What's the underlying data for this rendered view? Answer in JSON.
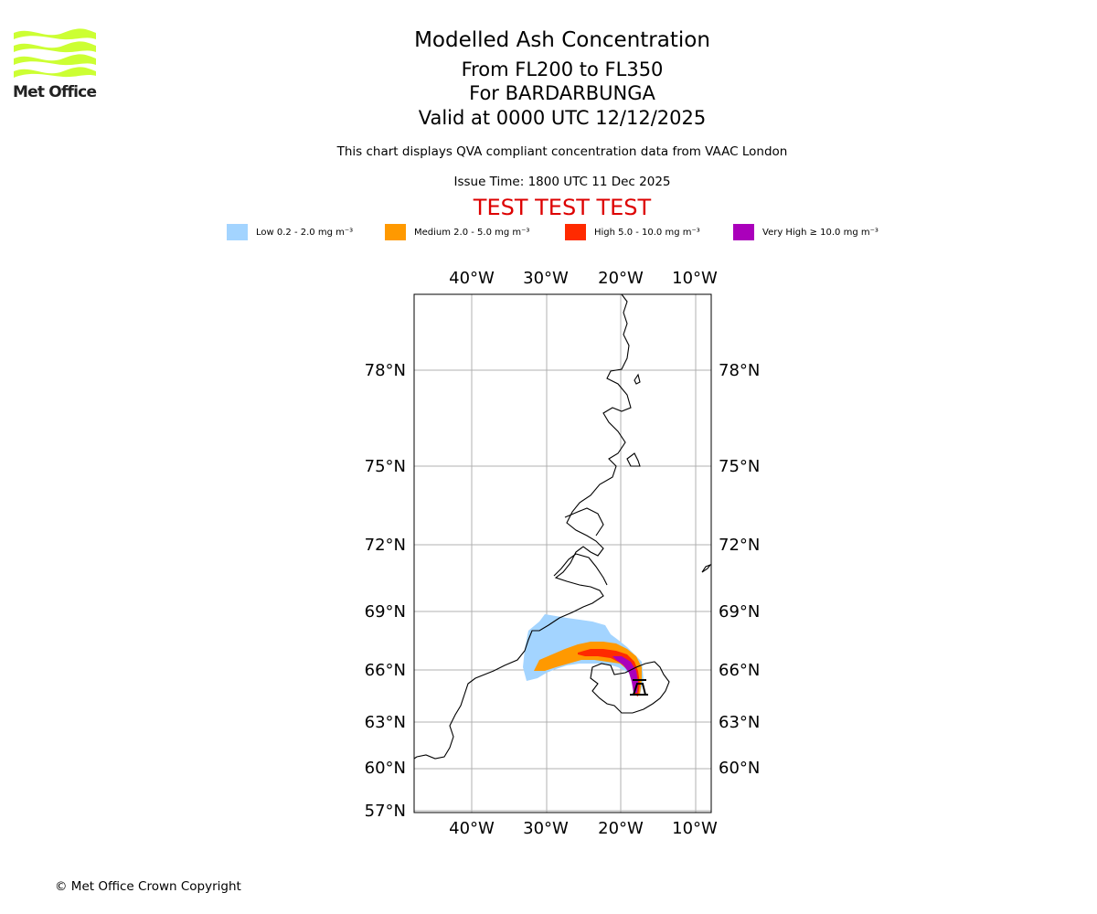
{
  "header": {
    "title": "Modelled Ash Concentration",
    "levels": "From FL200 to FL350",
    "volcano_line": "For BARDARBUNGA",
    "valid_line": "Valid at 0000 UTC 12/12/2025",
    "compliance_note": "This chart displays QVA compliant concentration data from VAAC London",
    "issue_time": "Issue Time: 1800 UTC 11 Dec 2025",
    "test_banner": "TEST TEST TEST"
  },
  "logo": {
    "text": "Met Office",
    "color": "#ccff33"
  },
  "legend": [
    {
      "label": "Low 0.2 - 2.0 mg m⁻³",
      "color": "#a3d4ff"
    },
    {
      "label": "Medium 2.0 - 5.0 mg m⁻³",
      "color": "#ff9900"
    },
    {
      "label": "High 5.0 - 10.0 mg m⁻³",
      "color": "#ff2a00"
    },
    {
      "label": "Very High  ≥  10.0 mg m⁻³",
      "color": "#aa00bb"
    }
  ],
  "map": {
    "lon_ticks_top": [
      "40°W",
      "30°W",
      "20°W",
      "10°W"
    ],
    "lon_ticks_bottom": [
      "40°W",
      "30°W",
      "20°W",
      "10°W"
    ],
    "lat_ticks_left": [
      "78°N",
      "75°N",
      "72°N",
      "69°N",
      "66°N",
      "63°N",
      "60°N",
      "57°N"
    ],
    "lat_ticks_right": [
      "78°N",
      "75°N",
      "72°N",
      "69°N",
      "66°N",
      "63°N",
      "60°N"
    ],
    "volcano_marker": "volcano"
  },
  "footer": {
    "copyright": "© Met Office Crown Copyright"
  }
}
